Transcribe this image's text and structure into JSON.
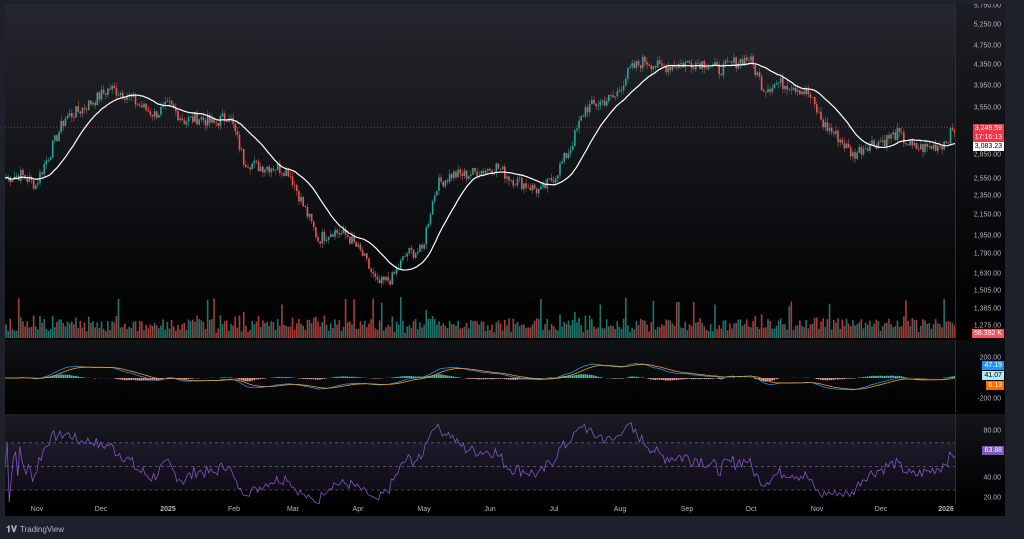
{
  "chart_data": {
    "type": "candlestick",
    "title": "",
    "price_axis_ticks": [
      "5,750.00",
      "5,250.00",
      "4,750.00",
      "4,350.00",
      "3,950.00",
      "3,550.00",
      "2,850.00",
      "2,550.00",
      "2,350.00",
      "2,150.00",
      "1,950.00",
      "1,790.00",
      "1,630.00",
      "1,505.00",
      "1,385.00",
      "1,275.00"
    ],
    "price_tick_values": [
      5750,
      5250,
      4750,
      4350,
      3950,
      3550,
      2850,
      2550,
      2350,
      2150,
      1950,
      1790,
      1630,
      1505,
      1385,
      1275
    ],
    "time_labels": [
      "Nov",
      "Dec",
      "2025",
      "Feb",
      "Mar",
      "Apr",
      "May",
      "Jun",
      "Jul",
      "Aug",
      "Sep",
      "Oct",
      "Nov",
      "Dec",
      "2026"
    ],
    "weekly_closes": [
      2560,
      2600,
      2480,
      2900,
      3400,
      3520,
      3700,
      3900,
      3800,
      3600,
      3450,
      3600,
      3350,
      3400,
      3300,
      3450,
      2780,
      2700,
      2700,
      2650,
      2250,
      1920,
      2000,
      1950,
      1780,
      1550,
      1600,
      1800,
      1820,
      2480,
      2600,
      2600,
      2650,
      2700,
      2550,
      2480,
      2400,
      2600,
      2950,
      3550,
      3650,
      3750,
      4250,
      4450,
      4300,
      4350,
      4400,
      4400,
      4250,
      4400,
      4500,
      3900,
      4000,
      3950,
      3800,
      3300,
      3100,
      2850,
      3000,
      3050,
      3150,
      2950,
      2950,
      3000,
      3250
    ],
    "last_price": "3,249.59",
    "countdown": "17:16:13",
    "ma_value": "3,083.23",
    "volume_value": "58.392 K",
    "macd": {
      "ticks": [
        "200.00",
        "-200.00"
      ],
      "macd": "47.19",
      "histogram": "41.07",
      "signal": "6.13"
    },
    "rsi": {
      "ticks": [
        "80.00",
        "40.00",
        "20.00"
      ],
      "value": "63.88",
      "bands": [
        70,
        50,
        30
      ]
    },
    "colors": {
      "up": "#26a69a",
      "down": "#ef5350",
      "ma": "#ffffff",
      "rsi": "#7e57c2",
      "macd": "#2196f3",
      "signal": "#ff9800"
    }
  },
  "footer": {
    "brand": "TradingView"
  }
}
